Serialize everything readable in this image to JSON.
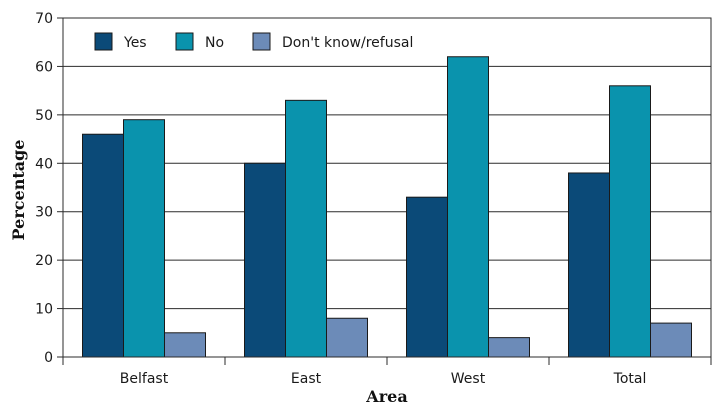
{
  "chart_data": {
    "type": "bar",
    "title": "",
    "xlabel": "Area",
    "ylabel": "Percentage",
    "categories": [
      "Belfast",
      "East",
      "West",
      "Total"
    ],
    "series": [
      {
        "name": "Yes",
        "values": [
          46,
          40,
          33,
          38
        ],
        "color": "#0b4a78"
      },
      {
        "name": "No",
        "values": [
          49,
          53,
          62,
          56
        ],
        "color": "#0a93ad"
      },
      {
        "name": "Don't know/refusal",
        "values": [
          5,
          8,
          4,
          7
        ],
        "color": "#6c8bb8"
      }
    ],
    "ylim": [
      0,
      70
    ],
    "yticks": [
      0,
      10,
      20,
      30,
      40,
      50,
      60,
      70
    ],
    "grid": true,
    "legend_position": "top-left"
  }
}
